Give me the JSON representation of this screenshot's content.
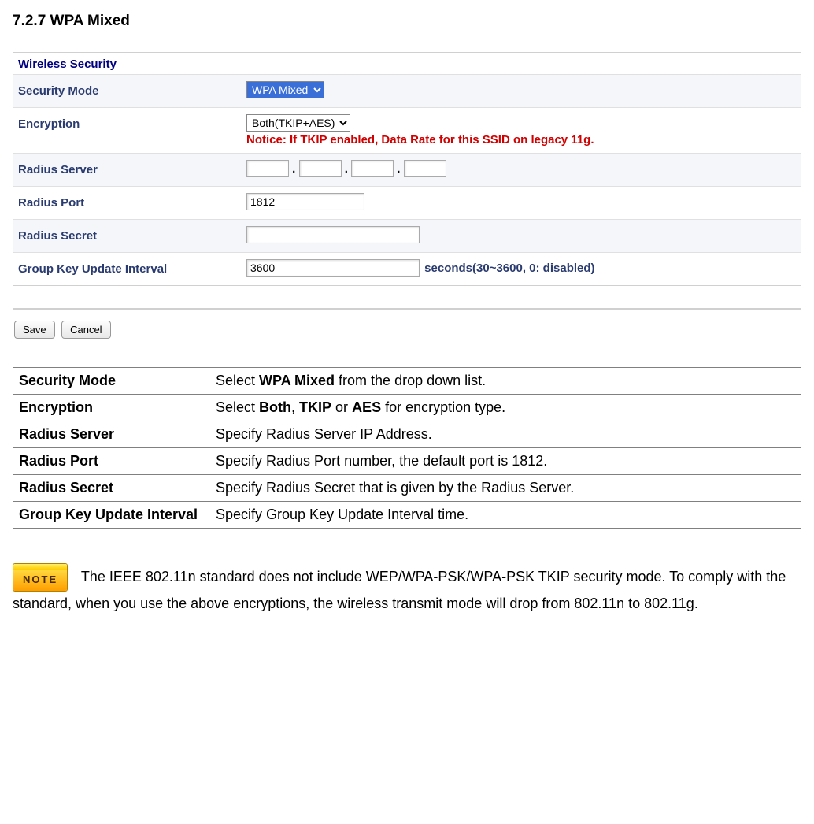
{
  "section_title": "7.2.7 WPA Mixed",
  "panel": {
    "header": "Wireless Security",
    "rows": {
      "security_mode": {
        "label": "Security Mode",
        "value": "WPA Mixed"
      },
      "encryption": {
        "label": "Encryption",
        "value": "Both(TKIP+AES)",
        "notice": "Notice: If TKIP enabled, Data Rate for this SSID on legacy 11g."
      },
      "radius_server": {
        "label": "Radius Server",
        "seg1": "",
        "seg2": "",
        "seg3": "",
        "seg4": ""
      },
      "radius_port": {
        "label": "Radius Port",
        "value": "1812"
      },
      "radius_secret": {
        "label": "Radius Secret",
        "value": ""
      },
      "group_key": {
        "label": "Group Key Update Interval",
        "value": "3600",
        "suffix": "seconds(30~3600, 0: disabled)"
      }
    },
    "buttons": {
      "save": "Save",
      "cancel": "Cancel"
    }
  },
  "desc_table": [
    {
      "k": "Security Mode",
      "v_pre": "Select ",
      "v_bold": "WPA Mixed",
      "v_post": " from the drop down list."
    },
    {
      "k": "Encryption",
      "v_full": "Select <b>Both</b>, <b>TKIP</b> or <b>AES</b> for encryption type."
    },
    {
      "k": "Radius Server",
      "v_plain": "Specify Radius Server IP Address."
    },
    {
      "k": "Radius Port",
      "v_plain": "Specify Radius Port number, the default port is 1812."
    },
    {
      "k": "Radius Secret",
      "v_plain": "Specify Radius Secret that is given by the Radius Server."
    },
    {
      "k": "Group Key Update Interval",
      "v_plain": "Specify Group Key Update Interval time."
    }
  ],
  "note": {
    "badge": "NOTE",
    "text": "The IEEE 802.11n standard does not include WEP/WPA-PSK/WPA-PSK TKIP security mode. To comply with the standard, when you use the above encryptions, the wireless transmit mode will drop from 802.11n to 802.11g."
  }
}
